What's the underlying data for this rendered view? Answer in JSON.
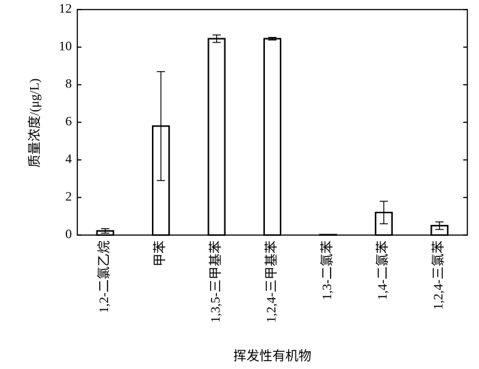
{
  "chart_data": {
    "type": "bar",
    "x_label": "挥发性有机物",
    "y_label": "质量浓度/(μg/L)",
    "categories": [
      "1,2-二氯乙烷",
      "甲苯",
      "1,3,5-三甲基苯",
      "1,2,4-三甲基苯",
      "1,3-二氯苯",
      "1,4-二氯苯",
      "1,2,4-三氯苯"
    ],
    "values": [
      0.22,
      5.8,
      10.45,
      10.45,
      0.02,
      1.2,
      0.5
    ],
    "errors": [
      0.12,
      2.9,
      0.2,
      0.07,
      0,
      0.6,
      0.2
    ],
    "color": "#ffffff",
    "edge_color": "#000000",
    "ylim": [
      0,
      12
    ],
    "yticks": [
      0,
      2,
      4,
      6,
      8,
      10,
      12
    ],
    "grid": false
  }
}
